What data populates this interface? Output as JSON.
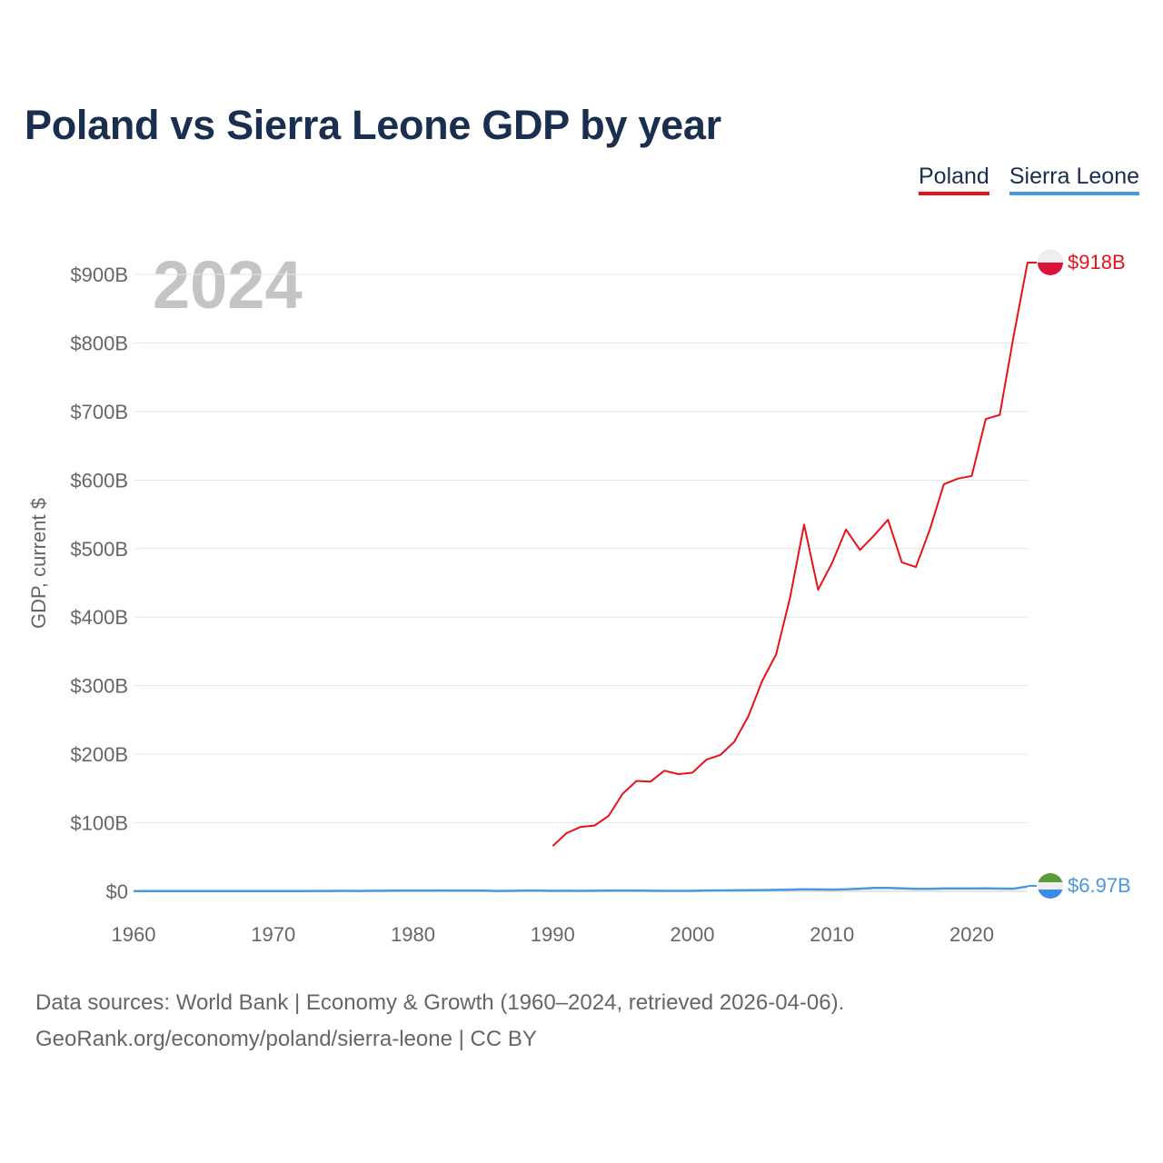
{
  "title": "Poland vs Sierra Leone GDP by year",
  "legend": [
    {
      "label": "Poland",
      "color": "#e8121a"
    },
    {
      "label": "Sierra Leone",
      "color": "#4a98e0"
    }
  ],
  "year_watermark": "2024",
  "end_labels": {
    "poland": "$918B",
    "sierra_leone": "$6.97B"
  },
  "footer": {
    "line1": "Data sources: World Bank | Economy & Growth (1960–2024, retrieved 2026-04-06).",
    "line2": "GeoRank.org/economy/poland/sierra-leone | CC BY"
  },
  "chart_data": {
    "type": "line",
    "title": "Poland vs Sierra Leone GDP by year",
    "xlabel": "",
    "ylabel": "GDP, current $",
    "xlim": [
      1960,
      2024
    ],
    "ylim": [
      0,
      900
    ],
    "x_ticks": [
      1960,
      1970,
      1980,
      1990,
      2000,
      2010,
      2020
    ],
    "x_tick_labels": [
      "1960",
      "1970",
      "1980",
      "1990",
      "2000",
      "2010",
      "2020"
    ],
    "y_ticks": [
      0,
      100,
      200,
      300,
      400,
      500,
      600,
      700,
      800,
      900
    ],
    "y_tick_labels": [
      "$0",
      "$100B",
      "$200B",
      "$300B",
      "$400B",
      "$500B",
      "$600B",
      "$700B",
      "$800B",
      "$900B"
    ],
    "grid": true,
    "legend_position": "top-right",
    "series": [
      {
        "name": "Poland",
        "color": "#e8121a",
        "x": [
          1990,
          1991,
          1992,
          1993,
          1994,
          1995,
          1996,
          1997,
          1998,
          1999,
          2000,
          2001,
          2002,
          2003,
          2004,
          2005,
          2006,
          2007,
          2008,
          2009,
          2010,
          2011,
          2012,
          2013,
          2014,
          2015,
          2016,
          2017,
          2018,
          2019,
          2020,
          2021,
          2022,
          2023,
          2024
        ],
        "values": [
          66,
          85,
          94,
          96,
          110,
          142,
          161,
          160,
          176,
          171,
          173,
          192,
          199,
          218,
          255,
          307,
          346,
          429,
          535,
          440,
          479,
          528,
          498,
          519,
          542,
          480,
          473,
          528,
          594,
          602,
          606,
          689,
          695,
          810,
          918
        ]
      },
      {
        "name": "Sierra Leone",
        "color": "#4a98e0",
        "x": [
          1960,
          1961,
          1962,
          1963,
          1964,
          1965,
          1966,
          1967,
          1968,
          1969,
          1970,
          1971,
          1972,
          1973,
          1974,
          1975,
          1976,
          1977,
          1978,
          1979,
          1980,
          1981,
          1982,
          1983,
          1984,
          1985,
          1986,
          1987,
          1988,
          1989,
          1990,
          1991,
          1992,
          1993,
          1994,
          1995,
          1996,
          1997,
          1998,
          1999,
          2000,
          2001,
          2002,
          2003,
          2004,
          2005,
          2006,
          2007,
          2008,
          2009,
          2010,
          2011,
          2012,
          2013,
          2014,
          2015,
          2016,
          2017,
          2018,
          2019,
          2020,
          2021,
          2022,
          2023,
          2024
        ],
        "values": [
          0.32,
          0.33,
          0.34,
          0.34,
          0.36,
          0.38,
          0.38,
          0.37,
          0.38,
          0.42,
          0.41,
          0.41,
          0.43,
          0.53,
          0.56,
          0.61,
          0.59,
          0.67,
          0.82,
          0.99,
          1.1,
          1.09,
          1.24,
          0.98,
          0.96,
          0.95,
          0.58,
          0.72,
          1.0,
          0.91,
          0.65,
          0.78,
          0.7,
          0.77,
          0.87,
          0.87,
          0.94,
          0.85,
          0.67,
          0.67,
          0.64,
          1.24,
          1.34,
          1.46,
          1.62,
          1.83,
          2.1,
          2.49,
          2.92,
          2.78,
          2.58,
          2.94,
          3.8,
          4.92,
          5.02,
          4.22,
          3.67,
          3.74,
          4.09,
          4.12,
          4.06,
          4.25,
          3.97,
          3.81,
          6.97
        ]
      }
    ]
  }
}
